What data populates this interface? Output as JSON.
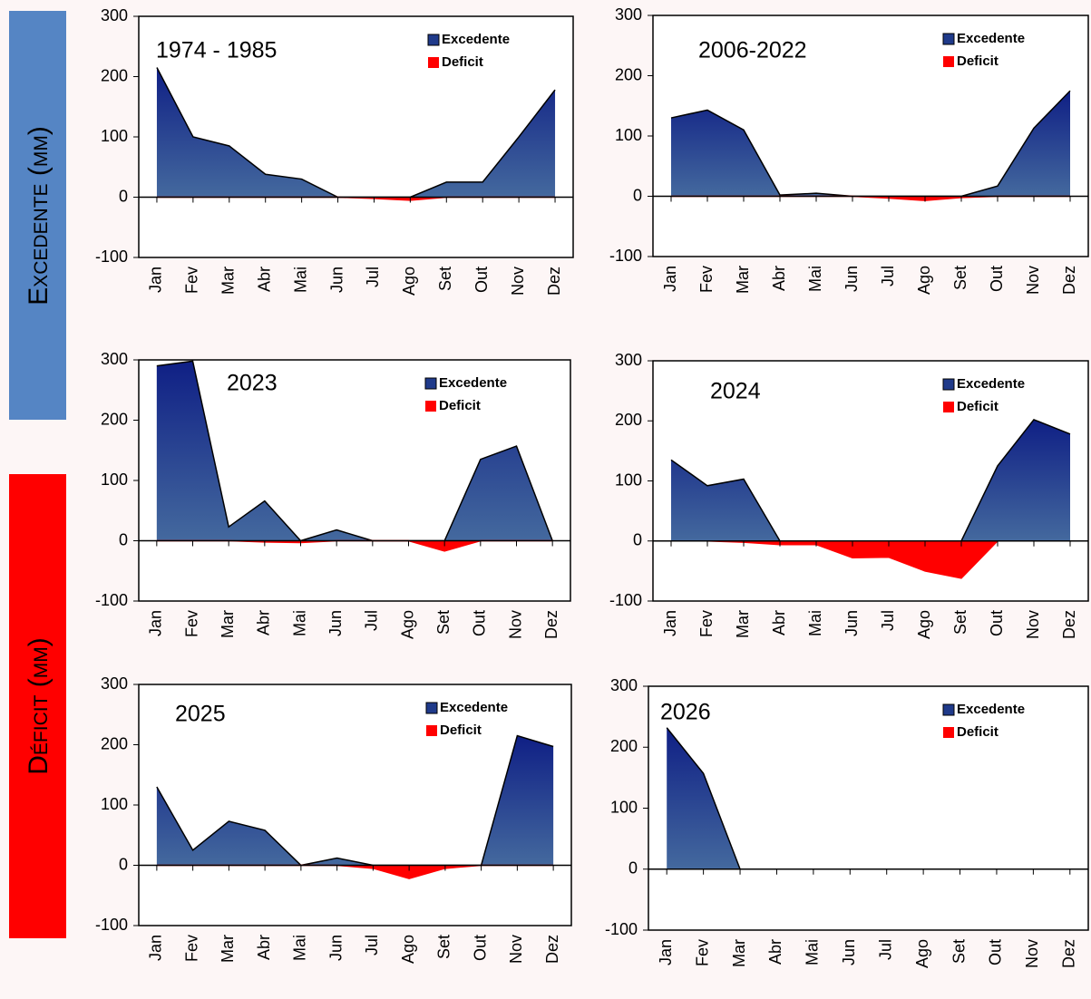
{
  "side_labels": [
    "Excedente (mm)",
    "Déficit (mm)"
  ],
  "chart_data": [
    {
      "type": "area",
      "title": "1974 - 1985",
      "categories": [
        "Jan",
        "Fev",
        "Mar",
        "Abr",
        "Mai",
        "Jun",
        "Jul",
        "Ago",
        "Set",
        "Out",
        "Nov",
        "Dez"
      ],
      "series": [
        {
          "name": "Excedente",
          "color": "#1f3a8a",
          "values": [
            215,
            100,
            85,
            38,
            30,
            0,
            0,
            0,
            25,
            25,
            100,
            178
          ]
        },
        {
          "name": "Deficit",
          "color": "#ff0000",
          "values": [
            0,
            0,
            0,
            0,
            0,
            0,
            -2,
            -5,
            0,
            0,
            0,
            0
          ]
        }
      ],
      "ylim": [
        -100,
        300
      ],
      "yticks": [
        -100,
        0,
        100,
        200,
        300
      ],
      "legend": "upper right"
    },
    {
      "type": "area",
      "title": "2006-2022",
      "categories": [
        "Jan",
        "Fev",
        "Mar",
        "Abr",
        "Mai",
        "Jun",
        "Jul",
        "Ago",
        "Set",
        "Out",
        "Nov",
        "Dez"
      ],
      "series": [
        {
          "name": "Excedente",
          "color": "#1f3a8a",
          "values": [
            130,
            143,
            110,
            2,
            5,
            0,
            0,
            0,
            0,
            17,
            113,
            175
          ]
        },
        {
          "name": "Deficit",
          "color": "#ff0000",
          "values": [
            0,
            0,
            0,
            0,
            0,
            0,
            -3,
            -7,
            -2,
            0,
            0,
            0
          ]
        }
      ],
      "ylim": [
        -100,
        300
      ],
      "yticks": [
        -100,
        0,
        100,
        200,
        300
      ],
      "legend": "upper right"
    },
    {
      "type": "area",
      "title": "2023",
      "categories": [
        "Jan",
        "Fev",
        "Mar",
        "Abr",
        "Mai",
        "Jun",
        "Jul",
        "Ago",
        "Set",
        "Out",
        "Nov",
        "Dez"
      ],
      "series": [
        {
          "name": "Excedente",
          "color": "#1f3a8a",
          "values": [
            290,
            298,
            23,
            66,
            0,
            18,
            0,
            0,
            0,
            135,
            157,
            0
          ]
        },
        {
          "name": "Deficit",
          "color": "#ff0000",
          "values": [
            0,
            0,
            0,
            -2,
            -3,
            0,
            0,
            0,
            -17,
            0,
            0,
            0
          ]
        }
      ],
      "ylim": [
        -100,
        300
      ],
      "yticks": [
        -100,
        0,
        100,
        200,
        300
      ],
      "legend": "upper right"
    },
    {
      "type": "area",
      "title": "2024",
      "categories": [
        "Jan",
        "Fev",
        "Mar",
        "Abr",
        "Mai",
        "Jun",
        "Jul",
        "Ago",
        "Set",
        "Out",
        "Nov",
        "Dez"
      ],
      "series": [
        {
          "name": "Excedente",
          "color": "#1f3a8a",
          "values": [
            135,
            92,
            103,
            0,
            0,
            0,
            0,
            0,
            0,
            125,
            202,
            178
          ]
        },
        {
          "name": "Deficit",
          "color": "#ff0000",
          "values": [
            0,
            0,
            -2,
            -6,
            -6,
            -28,
            -27,
            -50,
            -62,
            0,
            0,
            0
          ]
        }
      ],
      "ylim": [
        -100,
        300
      ],
      "yticks": [
        -100,
        0,
        100,
        200,
        300
      ],
      "legend": "upper right"
    },
    {
      "type": "area",
      "title": "2025",
      "categories": [
        "Jan",
        "Fev",
        "Mar",
        "Abr",
        "Mai",
        "Jun",
        "Jul",
        "Ago",
        "Set",
        "Out",
        "Nov",
        "Dez"
      ],
      "series": [
        {
          "name": "Excedente",
          "color": "#1f3a8a",
          "values": [
            130,
            25,
            73,
            58,
            0,
            12,
            0,
            0,
            0,
            0,
            215,
            197
          ]
        },
        {
          "name": "Deficit",
          "color": "#ff0000",
          "values": [
            0,
            0,
            0,
            0,
            0,
            0,
            -5,
            -22,
            -5,
            0,
            0,
            0
          ]
        }
      ],
      "ylim": [
        -100,
        300
      ],
      "yticks": [
        -100,
        0,
        100,
        200,
        300
      ],
      "legend": "upper right"
    },
    {
      "type": "area",
      "title": "2026",
      "categories": [
        "Jan",
        "Fev",
        "Mar",
        "Abr",
        "Mai",
        "Jun",
        "Jul",
        "Ago",
        "Set",
        "Out",
        "Nov",
        "Dez"
      ],
      "series": [
        {
          "name": "Excedente",
          "color": "#1f3a8a",
          "values": [
            232,
            157,
            0,
            0,
            0,
            0,
            0,
            0,
            0,
            0,
            0,
            0
          ]
        },
        {
          "name": "Deficit",
          "color": "#ff0000",
          "values": [
            0,
            0,
            0,
            0,
            0,
            0,
            0,
            0,
            0,
            0,
            0,
            0
          ]
        }
      ],
      "ylim": [
        -100,
        300
      ],
      "yticks": [
        -100,
        0,
        100,
        200,
        300
      ],
      "legend": "upper right"
    }
  ]
}
